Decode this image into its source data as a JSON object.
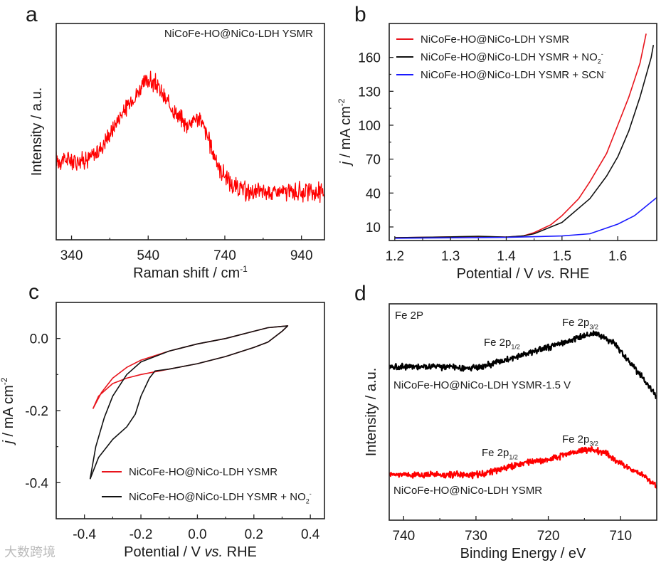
{
  "watermark": "大数跨境",
  "chart_data": [
    {
      "panel": "a",
      "type": "line",
      "title": "",
      "xlabel": "Raman shift / cm^{-1}",
      "ylabel": "Intensity / a.u.",
      "xlim": [
        300,
        1000
      ],
      "ylim": [
        0,
        1
      ],
      "xticks": [
        340,
        540,
        740,
        940
      ],
      "yticks": [],
      "annotations": [
        {
          "text": "NiCoFe-HO@NiCo-LDH YSMR"
        }
      ],
      "series": [
        {
          "name": "NiCoFe-HO@NiCo-LDH YSMR",
          "color": "#ff0000",
          "noisy": true,
          "x": [
            300,
            350,
            380,
            410,
            440,
            470,
            500,
            520,
            540,
            560,
            580,
            600,
            620,
            640,
            660,
            675,
            690,
            710,
            730,
            760,
            800,
            850,
            900,
            950,
            1000
          ],
          "y": [
            0.37,
            0.37,
            0.37,
            0.41,
            0.49,
            0.58,
            0.65,
            0.7,
            0.74,
            0.72,
            0.66,
            0.61,
            0.57,
            0.53,
            0.56,
            0.56,
            0.5,
            0.4,
            0.32,
            0.25,
            0.22,
            0.22,
            0.22,
            0.22,
            0.22
          ]
        }
      ]
    },
    {
      "panel": "b",
      "type": "line",
      "title": "",
      "xlabel": "Potential / V *vs.* RHE",
      "ylabel": "*j* / mA cm^{-2}",
      "xlim": [
        1.19,
        1.67
      ],
      "ylim": [
        -2,
        190
      ],
      "xticks": [
        "1.2",
        "1.3",
        "1.4",
        "1.5",
        "1.6"
      ],
      "yticks": [
        "10",
        "40",
        "70",
        "100",
        "130",
        "160"
      ],
      "legend_position": "top-left",
      "series": [
        {
          "name": "NiCoFe-HO@NiCo-LDH YSMR",
          "color": "#e8141c",
          "x": [
            1.2,
            1.3,
            1.35,
            1.4,
            1.43,
            1.45,
            1.48,
            1.5,
            1.53,
            1.55,
            1.58,
            1.6,
            1.62,
            1.64,
            1.651
          ],
          "y": [
            0.5,
            1.2,
            1.6,
            1.0,
            2,
            5,
            12,
            20,
            35,
            50,
            75,
            100,
            125,
            155,
            181
          ]
        },
        {
          "name": "NiCoFe-HO@NiCo-LDH YSMR + NO_{2}^{-}",
          "color": "#111111",
          "x": [
            1.2,
            1.3,
            1.35,
            1.4,
            1.43,
            1.45,
            1.5,
            1.55,
            1.58,
            1.6,
            1.62,
            1.64,
            1.66,
            1.664
          ],
          "y": [
            0.5,
            1.2,
            1.8,
            1.0,
            2,
            4,
            14,
            35,
            55,
            72,
            95,
            125,
            160,
            171
          ]
        },
        {
          "name": "NiCoFe-HO@NiCo-LDH YSMR + SCN^{-}",
          "color": "#1a1aff",
          "x": [
            1.2,
            1.3,
            1.4,
            1.5,
            1.55,
            1.6,
            1.63,
            1.67
          ],
          "y": [
            0,
            0.4,
            0.8,
            2,
            4,
            12.5,
            20,
            36
          ]
        }
      ]
    },
    {
      "panel": "c",
      "type": "line",
      "title": "",
      "xlabel": "Potential / V *vs.* RHE",
      "ylabel": "*j* / mA cm^{-2}",
      "xlim": [
        -0.5,
        0.45
      ],
      "ylim": [
        -0.5,
        0.1
      ],
      "xticks": [
        "-0.4",
        "-0.2",
        "0.0",
        "0.2",
        "0.4"
      ],
      "yticks": [
        "-0.4",
        "-0.2",
        "0.0"
      ],
      "legend_position": "bottom-center",
      "series": [
        {
          "name": "NiCoFe-HO@NiCo-LDH YSMR",
          "color": "#e8141c",
          "x": [
            -0.37,
            -0.34,
            -0.3,
            -0.25,
            -0.2,
            -0.1,
            0,
            0.1,
            0.2,
            0.25,
            0.32,
            0.3,
            0.25,
            0.2,
            0.1,
            0,
            -0.1,
            -0.2,
            -0.25,
            -0.3,
            -0.35,
            -0.37
          ],
          "y": [
            -0.195,
            -0.15,
            -0.11,
            -0.08,
            -0.06,
            -0.035,
            -0.015,
            0.0,
            0.02,
            0.03,
            0.035,
            0.02,
            -0.01,
            -0.025,
            -0.05,
            -0.07,
            -0.085,
            -0.1,
            -0.11,
            -0.125,
            -0.16,
            -0.195
          ]
        },
        {
          "name": "NiCoFe-HO@NiCo-LDH YSMR + NO_{2}^{-}",
          "color": "#111111",
          "x": [
            -0.38,
            -0.36,
            -0.33,
            -0.3,
            -0.25,
            -0.2,
            -0.1,
            0,
            0.1,
            0.2,
            0.25,
            0.32,
            0.3,
            0.25,
            0.2,
            0.1,
            0,
            -0.1,
            -0.15,
            -0.17,
            -0.2,
            -0.22,
            -0.25,
            -0.3,
            -0.35,
            -0.38
          ],
          "y": [
            -0.39,
            -0.3,
            -0.22,
            -0.16,
            -0.1,
            -0.065,
            -0.035,
            -0.015,
            0.0,
            0.02,
            0.03,
            0.035,
            0.02,
            -0.01,
            -0.025,
            -0.05,
            -0.07,
            -0.085,
            -0.09,
            -0.11,
            -0.16,
            -0.21,
            -0.245,
            -0.28,
            -0.33,
            -0.39
          ]
        }
      ]
    },
    {
      "panel": "d",
      "type": "line",
      "title": "",
      "xlabel": "Binding Energy / eV",
      "ylabel": "Intensity / a.u.",
      "xlim": [
        742,
        705
      ],
      "ylim": [
        0,
        1
      ],
      "xticks": [
        740,
        730,
        720,
        710
      ],
      "yticks": [],
      "annotations": [
        {
          "text": "Fe 2P"
        },
        {
          "text": "Fe 2p_{1/2}"
        },
        {
          "text": "Fe 2p_{3/2}"
        },
        {
          "text": "NiCoFe-HO@NiCo-LDH YSMR-1.5 V"
        },
        {
          "text": "Fe 2p_{1/2}"
        },
        {
          "text": "Fe 2p_{3/2}"
        },
        {
          "text": "NiCoFe-HO@NiCo-LDH YSMR"
        }
      ],
      "series": [
        {
          "name": "NiCoFe-HO@NiCo-LDH YSMR-1.5 V",
          "color": "#000000",
          "noisy": true,
          "x": [
            742,
            735,
            731,
            729,
            726,
            723,
            720,
            717,
            714,
            713,
            711,
            709,
            707,
            705
          ],
          "y": [
            0.71,
            0.71,
            0.7,
            0.71,
            0.74,
            0.77,
            0.8,
            0.83,
            0.86,
            0.86,
            0.82,
            0.74,
            0.66,
            0.57
          ]
        },
        {
          "name": "NiCoFe-HO@NiCo-LDH YSMR",
          "color": "#ff0000",
          "noisy": true,
          "x": [
            742,
            735,
            730,
            727,
            724,
            720,
            717,
            714,
            712,
            710,
            707,
            705
          ],
          "y": [
            0.21,
            0.21,
            0.21,
            0.23,
            0.26,
            0.28,
            0.31,
            0.33,
            0.31,
            0.26,
            0.21,
            0.16
          ]
        }
      ]
    }
  ]
}
